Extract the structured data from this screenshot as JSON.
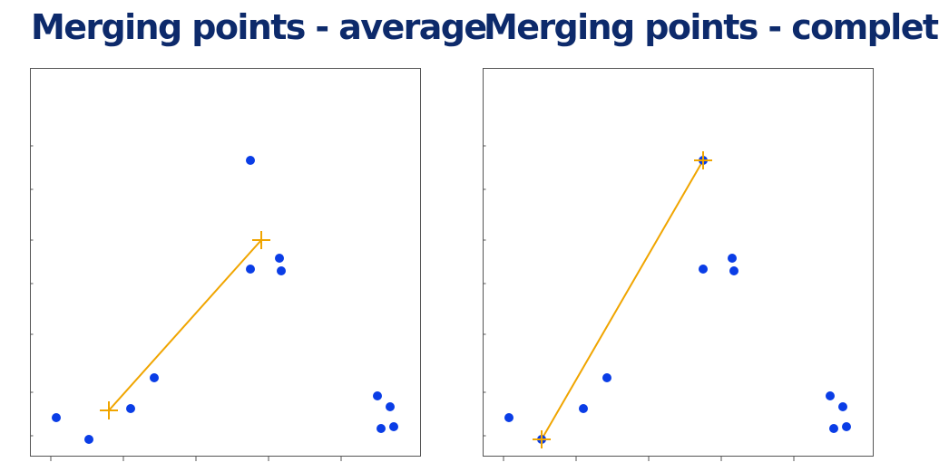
{
  "chart_data": [
    {
      "type": "scatter",
      "title": "Merging points - average",
      "xlim": [
        0,
        10
      ],
      "ylim": [
        0,
        10
      ],
      "xticks": [
        0.2,
        2.2,
        4.2,
        6.2,
        8.2
      ],
      "yticks": [
        0.2,
        1.4,
        3.0,
        4.4,
        5.6,
        7.0,
        8.2
      ],
      "points": [
        {
          "x": 0.35,
          "y": 0.7
        },
        {
          "x": 1.25,
          "y": 0.1
        },
        {
          "x": 2.4,
          "y": 0.95
        },
        {
          "x": 3.05,
          "y": 1.8
        },
        {
          "x": 5.7,
          "y": 4.8
        },
        {
          "x": 6.5,
          "y": 5.1
        },
        {
          "x": 6.55,
          "y": 4.75
        },
        {
          "x": 5.7,
          "y": 7.8
        },
        {
          "x": 9.2,
          "y": 1.3
        },
        {
          "x": 9.55,
          "y": 1.0
        },
        {
          "x": 9.3,
          "y": 0.4
        },
        {
          "x": 9.65,
          "y": 0.45
        }
      ],
      "merge_markers": [
        {
          "x": 1.8,
          "y": 0.9
        },
        {
          "x": 6.0,
          "y": 5.6
        }
      ]
    },
    {
      "type": "scatter",
      "title": "Merging points - complete",
      "xlim": [
        0,
        10
      ],
      "ylim": [
        0,
        10
      ],
      "xticks": [
        0.2,
        2.2,
        4.2,
        6.2,
        8.2
      ],
      "yticks": [
        0.2,
        1.4,
        3.0,
        4.4,
        5.6,
        7.0,
        8.2
      ],
      "points": [
        {
          "x": 0.35,
          "y": 0.7
        },
        {
          "x": 1.25,
          "y": 0.1
        },
        {
          "x": 2.4,
          "y": 0.95
        },
        {
          "x": 3.05,
          "y": 1.8
        },
        {
          "x": 5.7,
          "y": 4.8
        },
        {
          "x": 6.5,
          "y": 5.1
        },
        {
          "x": 6.55,
          "y": 4.75
        },
        {
          "x": 5.7,
          "y": 7.8
        },
        {
          "x": 9.2,
          "y": 1.3
        },
        {
          "x": 9.55,
          "y": 1.0
        },
        {
          "x": 9.3,
          "y": 0.4
        },
        {
          "x": 9.65,
          "y": 0.45
        }
      ],
      "merge_markers": [
        {
          "x": 1.25,
          "y": 0.1
        },
        {
          "x": 5.7,
          "y": 7.8
        }
      ]
    }
  ],
  "colors": {
    "title": "#0d2a6b",
    "point": "#0a3de6",
    "merge": "#f0a500",
    "axis": "#555555"
  }
}
